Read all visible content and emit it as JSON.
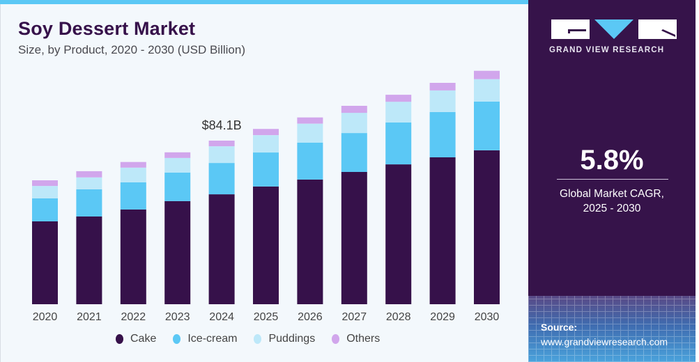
{
  "header": {
    "title": "Soy Dessert Market",
    "subtitle": "Size, by Product, 2020 - 2030 (USD Billion)"
  },
  "colors": {
    "cake": "#36114a",
    "ice_cream": "#5bc8f5",
    "puddings": "#bde8f9",
    "others": "#d1a6ec",
    "accent": "#5bc8f5",
    "panel": "#36134a"
  },
  "brand": {
    "name": "GRAND VIEW RESEARCH",
    "logo_icon": "gvr-logo-icon"
  },
  "cagr": {
    "value": "5.8%",
    "label_line1": "Global Market CAGR,",
    "label_line2": "2025 - 2030"
  },
  "source": {
    "label": "Source:",
    "url": "www.grandviewresearch.com"
  },
  "chart_data": {
    "type": "bar",
    "stacked": true,
    "title": "Soy Dessert Market",
    "subtitle": "Size, by Product, 2020 - 2030 (USD Billion)",
    "xlabel": "",
    "ylabel": "",
    "ylim": [
      0,
      130
    ],
    "grid": false,
    "legend_position": "bottom",
    "categories": [
      "2020",
      "2021",
      "2022",
      "2023",
      "2024",
      "2025",
      "2026",
      "2027",
      "2028",
      "2029",
      "2030"
    ],
    "series": [
      {
        "name": "Cake",
        "color": "#36114a",
        "values": [
          42.6,
          45.1,
          48.7,
          53.0,
          56.5,
          60.5,
          64.1,
          68.0,
          71.9,
          75.5,
          79.1
        ]
      },
      {
        "name": "Ice-cream",
        "color": "#5bc8f5",
        "values": [
          11.8,
          14.0,
          14.0,
          14.7,
          16.1,
          17.5,
          19.0,
          20.0,
          21.5,
          23.3,
          25.1
        ]
      },
      {
        "name": "Puddings",
        "color": "#bde8f9",
        "values": [
          6.4,
          6.1,
          7.5,
          7.5,
          8.6,
          8.9,
          9.7,
          10.4,
          10.7,
          11.1,
          11.5
        ]
      },
      {
        "name": "Others",
        "color": "#d1a6ec",
        "values": [
          2.9,
          3.2,
          2.9,
          2.9,
          2.9,
          3.2,
          3.2,
          3.6,
          3.6,
          3.9,
          4.3
        ]
      }
    ],
    "annotations": [
      {
        "category": "2024",
        "text": "$84.1B"
      }
    ]
  }
}
